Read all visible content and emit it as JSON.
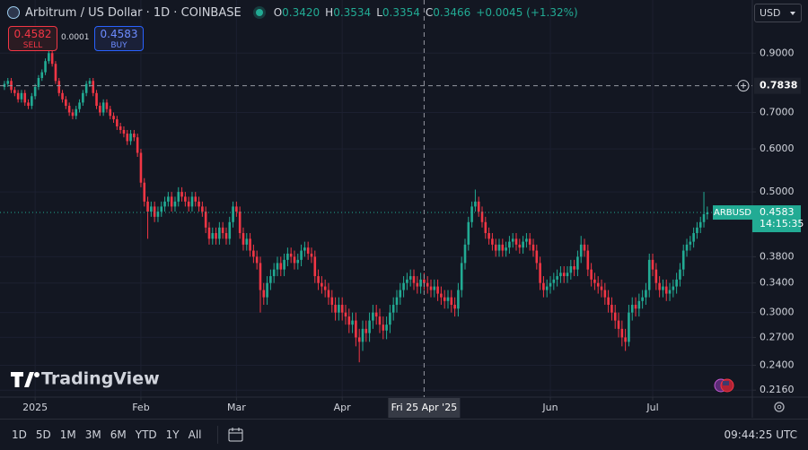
{
  "header": {
    "symbol": "Arbitrum / US Dollar · 1D · COINBASE",
    "ohlc": [
      {
        "label": "O",
        "value": "0.3420"
      },
      {
        "label": "H",
        "value": "0.3534"
      },
      {
        "label": "L",
        "value": "0.3354"
      },
      {
        "label": "C",
        "value": "0.3466"
      }
    ],
    "change": "+0.0045 (+1.32%)"
  },
  "trade": {
    "sell_price": "0.4582",
    "sell": "SELL",
    "spread": "0.0001",
    "buy_price": "0.4583",
    "buy": "BUY"
  },
  "currency": "USD",
  "watermark": "TradingView",
  "toolbar": {
    "ranges": [
      "1D",
      "5D",
      "1M",
      "3M",
      "6M",
      "YTD",
      "1Y",
      "All"
    ],
    "time": "09:44:25 UTC"
  },
  "chart_data": {
    "type": "candlestick",
    "log_scale": true,
    "grid": true,
    "up_color": "#22ab94",
    "down_color": "#f23645",
    "open": [
      0.78,
      0.79,
      0.8,
      0.77,
      0.76,
      0.74,
      0.76,
      0.73,
      0.72,
      0.75,
      0.78,
      0.81,
      0.83,
      0.87,
      0.9,
      0.86,
      0.8,
      0.76,
      0.74,
      0.72,
      0.7,
      0.69,
      0.71,
      0.73,
      0.76,
      0.79,
      0.8,
      0.76,
      0.72,
      0.7,
      0.73,
      0.71,
      0.69,
      0.68,
      0.66,
      0.65,
      0.64,
      0.62,
      0.64,
      0.63,
      0.59,
      0.52,
      0.48,
      0.46,
      0.47,
      0.45,
      0.46,
      0.47,
      0.48,
      0.49,
      0.47,
      0.48,
      0.5,
      0.49,
      0.48,
      0.47,
      0.49,
      0.48,
      0.47,
      0.46,
      0.43,
      0.41,
      0.42,
      0.41,
      0.43,
      0.42,
      0.41,
      0.44,
      0.47,
      0.46,
      0.42,
      0.4,
      0.41,
      0.39,
      0.38,
      0.37,
      0.33,
      0.32,
      0.34,
      0.35,
      0.36,
      0.37,
      0.36,
      0.375,
      0.385,
      0.38,
      0.37,
      0.375,
      0.39,
      0.395,
      0.385,
      0.38,
      0.35,
      0.34,
      0.335,
      0.33,
      0.32,
      0.31,
      0.3,
      0.31,
      0.3,
      0.295,
      0.285,
      0.29,
      0.27,
      0.265,
      0.28,
      0.275,
      0.29,
      0.3,
      0.295,
      0.285,
      0.278,
      0.285,
      0.3,
      0.31,
      0.32,
      0.33,
      0.34,
      0.345,
      0.35,
      0.34,
      0.335,
      0.345,
      0.34,
      0.335,
      0.33,
      0.335,
      0.325,
      0.32,
      0.315,
      0.32,
      0.31,
      0.305,
      0.33,
      0.37,
      0.4,
      0.44,
      0.47,
      0.48,
      0.46,
      0.44,
      0.42,
      0.41,
      0.4,
      0.39,
      0.4,
      0.39,
      0.395,
      0.405,
      0.41,
      0.4,
      0.395,
      0.405,
      0.41,
      0.4,
      0.39,
      0.37,
      0.34,
      0.33,
      0.335,
      0.34,
      0.345,
      0.35,
      0.355,
      0.35,
      0.355,
      0.365,
      0.36,
      0.38,
      0.4,
      0.39,
      0.36,
      0.345,
      0.34,
      0.335,
      0.33,
      0.32,
      0.31,
      0.3,
      0.29,
      0.28,
      0.27,
      0.265,
      0.3,
      0.31,
      0.305,
      0.315,
      0.32,
      0.33,
      0.375,
      0.36,
      0.34,
      0.33,
      0.335,
      0.325,
      0.33,
      0.335,
      0.345,
      0.36,
      0.39,
      0.4,
      0.405,
      0.42,
      0.43,
      0.44,
      0.455
    ],
    "high": [
      0.8,
      0.81,
      0.81,
      0.78,
      0.77,
      0.77,
      0.77,
      0.74,
      0.76,
      0.79,
      0.82,
      0.84,
      0.88,
      0.915,
      0.91,
      0.87,
      0.81,
      0.77,
      0.75,
      0.73,
      0.71,
      0.72,
      0.74,
      0.77,
      0.8,
      0.81,
      0.81,
      0.77,
      0.73,
      0.74,
      0.74,
      0.72,
      0.7,
      0.69,
      0.67,
      0.66,
      0.65,
      0.65,
      0.65,
      0.64,
      0.6,
      0.53,
      0.49,
      0.48,
      0.48,
      0.47,
      0.48,
      0.49,
      0.5,
      0.5,
      0.49,
      0.51,
      0.51,
      0.5,
      0.49,
      0.5,
      0.5,
      0.49,
      0.48,
      0.47,
      0.44,
      0.43,
      0.43,
      0.44,
      0.44,
      0.43,
      0.45,
      0.48,
      0.48,
      0.47,
      0.43,
      0.42,
      0.42,
      0.4,
      0.39,
      0.38,
      0.34,
      0.35,
      0.36,
      0.37,
      0.38,
      0.38,
      0.385,
      0.395,
      0.395,
      0.39,
      0.385,
      0.4,
      0.405,
      0.405,
      0.395,
      0.39,
      0.36,
      0.35,
      0.345,
      0.34,
      0.33,
      0.32,
      0.32,
      0.32,
      0.31,
      0.305,
      0.3,
      0.3,
      0.28,
      0.29,
      0.29,
      0.3,
      0.31,
      0.31,
      0.305,
      0.295,
      0.295,
      0.31,
      0.32,
      0.33,
      0.34,
      0.35,
      0.355,
      0.36,
      0.36,
      0.35,
      0.355,
      0.355,
      0.35,
      0.345,
      0.345,
      0.345,
      0.335,
      0.33,
      0.33,
      0.33,
      0.32,
      0.34,
      0.38,
      0.41,
      0.45,
      0.48,
      0.505,
      0.49,
      0.47,
      0.45,
      0.43,
      0.42,
      0.41,
      0.41,
      0.41,
      0.405,
      0.415,
      0.42,
      0.42,
      0.41,
      0.415,
      0.42,
      0.42,
      0.41,
      0.4,
      0.38,
      0.35,
      0.345,
      0.35,
      0.355,
      0.36,
      0.365,
      0.365,
      0.365,
      0.375,
      0.375,
      0.39,
      0.415,
      0.41,
      0.4,
      0.37,
      0.355,
      0.35,
      0.345,
      0.34,
      0.33,
      0.32,
      0.31,
      0.3,
      0.29,
      0.28,
      0.31,
      0.32,
      0.32,
      0.325,
      0.33,
      0.34,
      0.385,
      0.385,
      0.37,
      0.35,
      0.345,
      0.345,
      0.34,
      0.345,
      0.355,
      0.37,
      0.4,
      0.41,
      0.415,
      0.43,
      0.44,
      0.45,
      0.5,
      0.47
    ],
    "low": [
      0.77,
      0.78,
      0.76,
      0.75,
      0.73,
      0.73,
      0.72,
      0.71,
      0.71,
      0.74,
      0.77,
      0.8,
      0.82,
      0.86,
      0.85,
      0.79,
      0.75,
      0.73,
      0.71,
      0.69,
      0.68,
      0.68,
      0.7,
      0.72,
      0.75,
      0.78,
      0.75,
      0.71,
      0.69,
      0.69,
      0.7,
      0.68,
      0.67,
      0.65,
      0.64,
      0.63,
      0.61,
      0.61,
      0.62,
      0.58,
      0.51,
      0.47,
      0.41,
      0.45,
      0.44,
      0.44,
      0.45,
      0.46,
      0.47,
      0.46,
      0.46,
      0.47,
      0.48,
      0.47,
      0.46,
      0.46,
      0.47,
      0.46,
      0.45,
      0.42,
      0.4,
      0.4,
      0.4,
      0.4,
      0.41,
      0.4,
      0.4,
      0.43,
      0.45,
      0.41,
      0.39,
      0.39,
      0.38,
      0.37,
      0.36,
      0.3,
      0.31,
      0.31,
      0.33,
      0.34,
      0.35,
      0.35,
      0.35,
      0.365,
      0.37,
      0.36,
      0.36,
      0.365,
      0.38,
      0.375,
      0.37,
      0.34,
      0.33,
      0.325,
      0.32,
      0.31,
      0.3,
      0.29,
      0.29,
      0.29,
      0.285,
      0.275,
      0.275,
      0.26,
      0.243,
      0.255,
      0.265,
      0.265,
      0.28,
      0.285,
      0.275,
      0.268,
      0.268,
      0.275,
      0.29,
      0.3,
      0.31,
      0.32,
      0.33,
      0.335,
      0.33,
      0.325,
      0.325,
      0.33,
      0.325,
      0.32,
      0.32,
      0.315,
      0.31,
      0.305,
      0.305,
      0.3,
      0.295,
      0.295,
      0.32,
      0.36,
      0.39,
      0.43,
      0.46,
      0.45,
      0.43,
      0.41,
      0.4,
      0.39,
      0.38,
      0.38,
      0.38,
      0.38,
      0.385,
      0.395,
      0.39,
      0.385,
      0.385,
      0.395,
      0.39,
      0.38,
      0.36,
      0.33,
      0.32,
      0.32,
      0.325,
      0.33,
      0.335,
      0.34,
      0.34,
      0.34,
      0.345,
      0.35,
      0.35,
      0.37,
      0.38,
      0.35,
      0.335,
      0.33,
      0.325,
      0.32,
      0.31,
      0.3,
      0.29,
      0.28,
      0.27,
      0.26,
      0.255,
      0.26,
      0.29,
      0.295,
      0.295,
      0.305,
      0.31,
      0.32,
      0.35,
      0.33,
      0.32,
      0.32,
      0.315,
      0.315,
      0.32,
      0.325,
      0.335,
      0.35,
      0.38,
      0.39,
      0.395,
      0.41,
      0.42,
      0.43,
      0.445
    ],
    "close": [
      0.79,
      0.8,
      0.77,
      0.76,
      0.74,
      0.76,
      0.73,
      0.72,
      0.75,
      0.78,
      0.81,
      0.83,
      0.87,
      0.9,
      0.86,
      0.8,
      0.76,
      0.74,
      0.72,
      0.7,
      0.69,
      0.71,
      0.73,
      0.76,
      0.79,
      0.8,
      0.76,
      0.72,
      0.7,
      0.73,
      0.71,
      0.69,
      0.68,
      0.66,
      0.65,
      0.64,
      0.62,
      0.64,
      0.63,
      0.59,
      0.52,
      0.48,
      0.46,
      0.47,
      0.45,
      0.46,
      0.47,
      0.48,
      0.49,
      0.47,
      0.48,
      0.5,
      0.49,
      0.48,
      0.47,
      0.49,
      0.48,
      0.47,
      0.46,
      0.43,
      0.41,
      0.42,
      0.41,
      0.43,
      0.42,
      0.41,
      0.44,
      0.47,
      0.46,
      0.42,
      0.4,
      0.41,
      0.39,
      0.38,
      0.37,
      0.33,
      0.32,
      0.34,
      0.35,
      0.36,
      0.37,
      0.36,
      0.375,
      0.385,
      0.38,
      0.37,
      0.375,
      0.39,
      0.395,
      0.385,
      0.38,
      0.35,
      0.34,
      0.335,
      0.33,
      0.32,
      0.31,
      0.3,
      0.31,
      0.3,
      0.295,
      0.285,
      0.29,
      0.27,
      0.265,
      0.28,
      0.275,
      0.29,
      0.3,
      0.295,
      0.285,
      0.278,
      0.285,
      0.3,
      0.31,
      0.32,
      0.33,
      0.34,
      0.345,
      0.35,
      0.34,
      0.335,
      0.345,
      0.34,
      0.335,
      0.33,
      0.335,
      0.325,
      0.32,
      0.315,
      0.32,
      0.31,
      0.305,
      0.33,
      0.37,
      0.4,
      0.44,
      0.47,
      0.48,
      0.46,
      0.44,
      0.42,
      0.41,
      0.4,
      0.39,
      0.4,
      0.39,
      0.395,
      0.405,
      0.41,
      0.4,
      0.395,
      0.405,
      0.41,
      0.4,
      0.39,
      0.37,
      0.34,
      0.33,
      0.335,
      0.34,
      0.345,
      0.35,
      0.355,
      0.35,
      0.355,
      0.365,
      0.36,
      0.38,
      0.4,
      0.39,
      0.36,
      0.345,
      0.34,
      0.335,
      0.33,
      0.32,
      0.31,
      0.3,
      0.29,
      0.28,
      0.27,
      0.265,
      0.3,
      0.31,
      0.305,
      0.315,
      0.32,
      0.33,
      0.375,
      0.36,
      0.34,
      0.33,
      0.335,
      0.325,
      0.33,
      0.335,
      0.345,
      0.36,
      0.39,
      0.4,
      0.405,
      0.42,
      0.43,
      0.44,
      0.455,
      0.4583
    ],
    "ylim": [
      0.2097,
      1.127
    ],
    "yticks": [
      {
        "value": 0.216,
        "label": "0.2160"
      },
      {
        "value": 0.24,
        "label": "0.2400"
      },
      {
        "value": 0.27,
        "label": "0.2700"
      },
      {
        "value": 0.3,
        "label": "0.3000"
      },
      {
        "value": 0.34,
        "label": "0.3400"
      },
      {
        "value": 0.38,
        "label": "0.3800"
      },
      {
        "value": 0.5,
        "label": "0.5000"
      },
      {
        "value": 0.6,
        "label": "0.6000"
      },
      {
        "value": 0.7,
        "label": "0.7000"
      },
      {
        "value": 0.9,
        "label": "0.9000"
      }
    ],
    "xlim": [
      -1.3,
      219.2
    ],
    "xticks": [
      {
        "value": 9,
        "label": "2025"
      },
      {
        "value": 40,
        "label": "Feb"
      },
      {
        "value": 68,
        "label": "Mar"
      },
      {
        "value": 99,
        "label": "Apr"
      },
      {
        "value": 160,
        "label": "Jun"
      },
      {
        "value": 190,
        "label": "Jul"
      }
    ],
    "crosshair": {
      "x": 123,
      "x_label": "Fri 25 Apr '25",
      "y": 0.7838
    },
    "last_price": {
      "name": "ARBUSD",
      "value": 0.4583,
      "countdown": "14:15:35"
    }
  }
}
